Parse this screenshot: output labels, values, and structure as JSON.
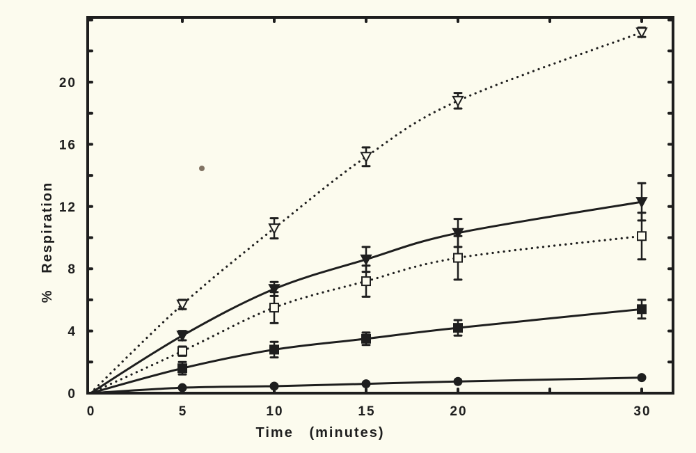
{
  "chart_data": {
    "type": "line",
    "title": "",
    "xlabel": "Time   (minutes)",
    "ylabel": "%   Respiration",
    "x": [
      0,
      5,
      10,
      15,
      20,
      30
    ],
    "xticks": [
      0,
      5,
      10,
      15,
      20,
      30
    ],
    "xlim": [
      0,
      32
    ],
    "yticks": [
      0,
      4,
      8,
      12,
      16,
      20
    ],
    "ylim": [
      0,
      24.2
    ],
    "grid": false,
    "legend": null,
    "series": [
      {
        "name": "open triangle (dotted)",
        "marker": "open-triangle-down",
        "line": "dotted",
        "values": [
          0,
          5.7,
          10.6,
          15.2,
          18.8,
          23.2
        ],
        "errors": [
          0,
          0.3,
          0.65,
          0.6,
          0.5,
          0.3
        ]
      },
      {
        "name": "filled triangle (solid)",
        "marker": "filled-triangle-down",
        "line": "solid",
        "values": [
          0,
          3.7,
          6.7,
          8.6,
          10.3,
          12.3
        ],
        "errors": [
          0,
          0.3,
          0.45,
          0.8,
          0.9,
          1.2
        ]
      },
      {
        "name": "open square (dotted)",
        "marker": "open-square",
        "line": "dotted",
        "values": [
          0,
          2.7,
          5.5,
          7.2,
          8.7,
          10.1
        ],
        "errors": [
          0,
          0.3,
          1.0,
          1.0,
          1.4,
          1.5
        ]
      },
      {
        "name": "filled square (solid)",
        "marker": "filled-square",
        "line": "solid",
        "values": [
          0,
          1.6,
          2.8,
          3.5,
          4.2,
          5.4
        ],
        "errors": [
          0,
          0.4,
          0.5,
          0.4,
          0.5,
          0.6
        ]
      },
      {
        "name": "filled circle (solid)",
        "marker": "filled-circle",
        "line": "solid",
        "values": [
          0,
          0.35,
          0.45,
          0.6,
          0.75,
          1.0
        ],
        "errors": [
          0,
          0,
          0,
          0,
          0,
          0
        ]
      }
    ]
  },
  "colors": {
    "background": "#fcfbee",
    "ink": "#1e1e1e",
    "spot": "#6b5a4a"
  }
}
